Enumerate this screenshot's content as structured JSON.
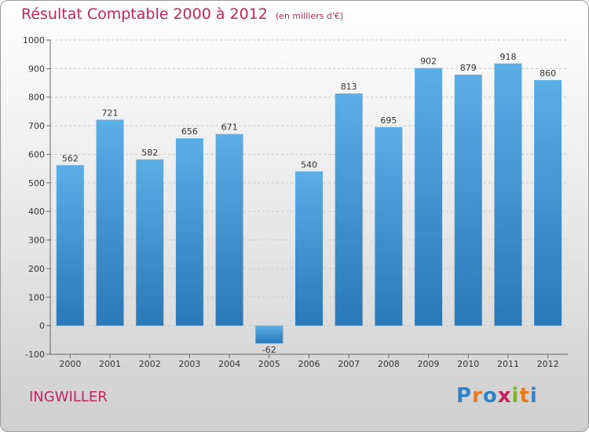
{
  "title": "Résultat Comptable 2000 à 2012",
  "subtitle": "(en milliers d'€)",
  "commune": "INGWILLER",
  "logo": {
    "text": "Proxiti",
    "letters": [
      {
        "ch": "P",
        "color": "#2f82c7"
      },
      {
        "ch": "r",
        "color": "#e57b1c"
      },
      {
        "ch": "o",
        "color": "#2f82c7"
      },
      {
        "ch": "x",
        "color": "#c2265e"
      },
      {
        "ch": "i",
        "color": "#7ab526"
      },
      {
        "ch": "t",
        "color": "#e57b1c"
      },
      {
        "ch": "i",
        "color": "#2f82c7"
      }
    ]
  },
  "colors": {
    "bar_light": "#5caee6",
    "bar_dark": "#2a78b8",
    "title": "#c2265e"
  },
  "chart_data": {
    "type": "bar",
    "title": "Résultat Comptable 2000 à 2012",
    "subtitle": "(en milliers d'€)",
    "xlabel": "",
    "ylabel": "",
    "ylim": [
      -100,
      1000
    ],
    "yticks": [
      -100,
      0,
      100,
      200,
      300,
      400,
      500,
      600,
      700,
      800,
      900,
      1000
    ],
    "grid": true,
    "categories": [
      "2000",
      "2001",
      "2002",
      "2003",
      "2004",
      "2005",
      "2006",
      "2007",
      "2008",
      "2009",
      "2010",
      "2011",
      "2012"
    ],
    "values": [
      562,
      721,
      582,
      656,
      671,
      -62,
      540,
      813,
      695,
      902,
      879,
      918,
      860
    ]
  }
}
